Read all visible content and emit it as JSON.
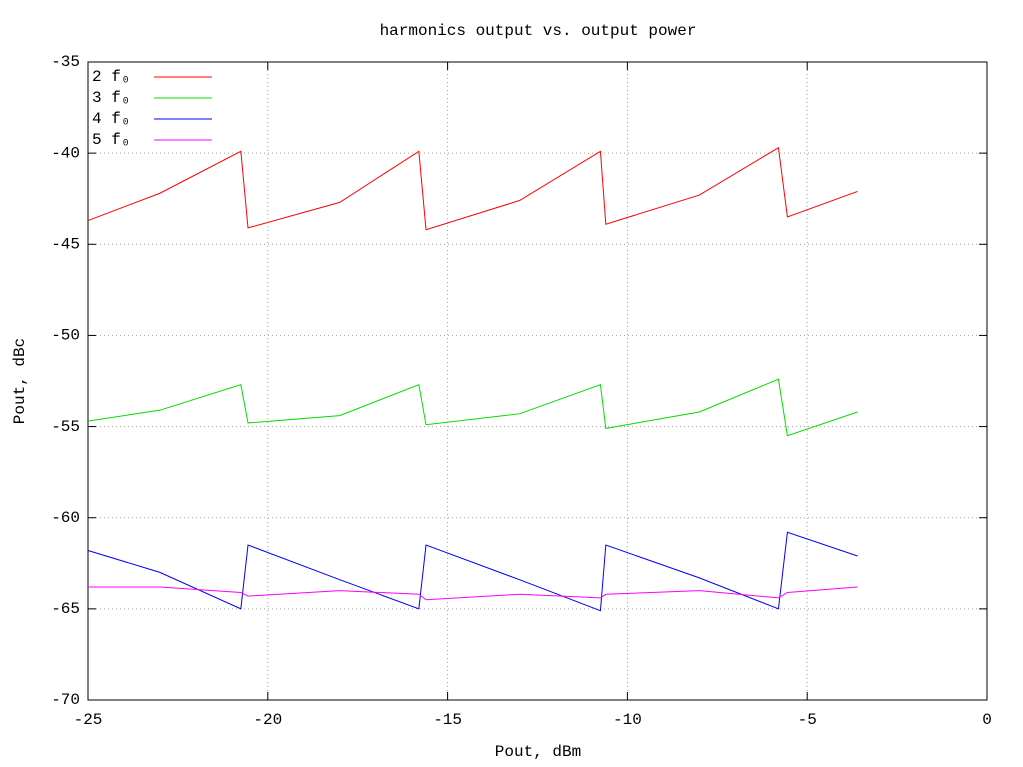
{
  "chart_data": {
    "type": "line",
    "title": "harmonics output vs. output power",
    "x_label": "Pout, dBm",
    "y_label": "Pout, dBc",
    "x": [
      -25,
      -23,
      -20.75,
      -20.55,
      -18,
      -15.8,
      -15.6,
      -13,
      -10.75,
      -10.6,
      -8,
      -5.8,
      -5.55,
      -3.6
    ],
    "series": [
      {
        "name": "2 f₀",
        "color": "#ff0000",
        "values": [
          -43.7,
          -42.2,
          -39.9,
          -44.1,
          -42.7,
          -39.9,
          -44.2,
          -42.6,
          -39.9,
          -43.9,
          -42.3,
          -39.7,
          -43.5,
          -42.1
        ]
      },
      {
        "name": "3 f₀",
        "color": "#00dd00",
        "values": [
          -54.7,
          -54.1,
          -52.7,
          -54.8,
          -54.4,
          -52.7,
          -54.9,
          -54.3,
          -52.7,
          -55.1,
          -54.2,
          -52.4,
          -55.5,
          -54.2
        ]
      },
      {
        "name": "4 f₀",
        "color": "#0000ff",
        "values": [
          -61.8,
          -63.0,
          -65.0,
          -61.5,
          -63.4,
          -65.0,
          -61.5,
          -63.4,
          -65.1,
          -61.5,
          -63.3,
          -65.0,
          -60.8,
          -62.1
        ]
      },
      {
        "name": "5 f₀",
        "color": "#ff00ff",
        "values": [
          -63.8,
          -63.8,
          -64.1,
          -64.3,
          -64.0,
          -64.2,
          -64.5,
          -64.2,
          -64.4,
          -64.2,
          -64.0,
          -64.4,
          -64.1,
          -63.8
        ]
      }
    ],
    "xlim": [
      -25,
      0
    ],
    "xticks": [
      -25,
      -20,
      -15,
      -10,
      -5,
      0
    ],
    "ylim": [
      -70,
      -35
    ],
    "yticks": [
      -70,
      -65,
      -60,
      -55,
      -50,
      -45,
      -40,
      -35
    ],
    "grid": true,
    "legend": "top-left"
  }
}
